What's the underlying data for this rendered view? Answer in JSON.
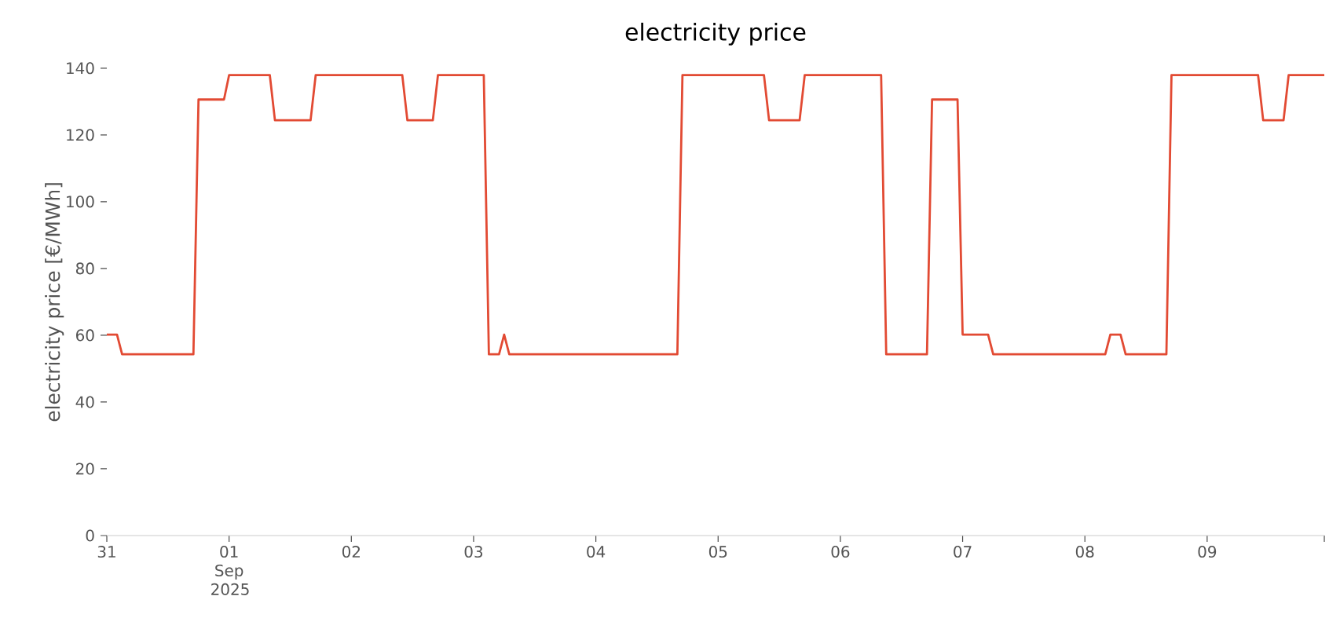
{
  "chart_data": {
    "type": "line",
    "title": "electricity price",
    "ylabel": "electricity price [€/MWh]",
    "x": [
      "2025-08-31T00:00",
      "2025-08-31T02:00",
      "2025-08-31T03:00",
      "2025-08-31T17:00",
      "2025-08-31T18:00",
      "2025-08-31T23:00",
      "2025-09-01T00:00",
      "2025-09-01T08:00",
      "2025-09-01T09:00",
      "2025-09-01T16:00",
      "2025-09-01T17:00",
      "2025-09-02T10:00",
      "2025-09-02T11:00",
      "2025-09-02T16:00",
      "2025-09-02T17:00",
      "2025-09-03T02:00",
      "2025-09-03T03:00",
      "2025-09-03T05:00",
      "2025-09-03T06:00",
      "2025-09-03T07:00",
      "2025-09-04T16:00",
      "2025-09-04T17:00",
      "2025-09-05T09:00",
      "2025-09-05T10:00",
      "2025-09-05T16:00",
      "2025-09-05T17:00",
      "2025-09-06T08:00",
      "2025-09-06T09:00",
      "2025-09-06T17:00",
      "2025-09-06T18:00",
      "2025-09-06T23:00",
      "2025-09-07T00:00",
      "2025-09-07T05:00",
      "2025-09-07T06:00",
      "2025-09-08T04:00",
      "2025-09-08T05:00",
      "2025-09-08T07:00",
      "2025-09-08T08:00",
      "2025-09-08T16:00",
      "2025-09-08T17:00",
      "2025-09-09T10:00",
      "2025-09-09T11:00",
      "2025-09-09T15:00",
      "2025-09-09T16:00",
      "2025-09-09T23:00"
    ],
    "series": [
      {
        "color": "#e24a33",
        "values": [
          60.2,
          60.2,
          54.3,
          54.3,
          130.6,
          130.6,
          137.9,
          137.9,
          124.4,
          124.4,
          137.9,
          137.9,
          124.4,
          124.4,
          137.9,
          137.9,
          54.3,
          54.3,
          60.2,
          54.3,
          54.3,
          137.9,
          137.9,
          124.4,
          124.4,
          137.9,
          137.9,
          54.3,
          54.3,
          130.6,
          130.6,
          60.2,
          60.2,
          54.3,
          54.3,
          60.2,
          60.2,
          54.3,
          54.3,
          137.9,
          137.9,
          124.4,
          124.4,
          137.9,
          137.9
        ]
      }
    ],
    "xlim": [
      "2025-08-31T00:00",
      "2025-09-09T23:00"
    ],
    "xticks": [
      {
        "value": "2025-08-31",
        "label": "31"
      },
      {
        "value": "2025-09-01",
        "label": "01 Sep 2025"
      },
      {
        "value": "2025-09-02",
        "label": "02"
      },
      {
        "value": "2025-09-03",
        "label": "03"
      },
      {
        "value": "2025-09-04",
        "label": "04"
      },
      {
        "value": "2025-09-05",
        "label": "05"
      },
      {
        "value": "2025-09-06",
        "label": "06"
      },
      {
        "value": "2025-09-07",
        "label": "07"
      },
      {
        "value": "2025-09-08",
        "label": "08"
      },
      {
        "value": "2025-09-09",
        "label": "09"
      },
      {
        "value": "2025-09-09T23:00",
        "label": null
      }
    ],
    "ylim": [
      0,
      140
    ],
    "yticks": [
      0,
      20,
      40,
      60,
      80,
      100,
      120,
      140
    ]
  }
}
